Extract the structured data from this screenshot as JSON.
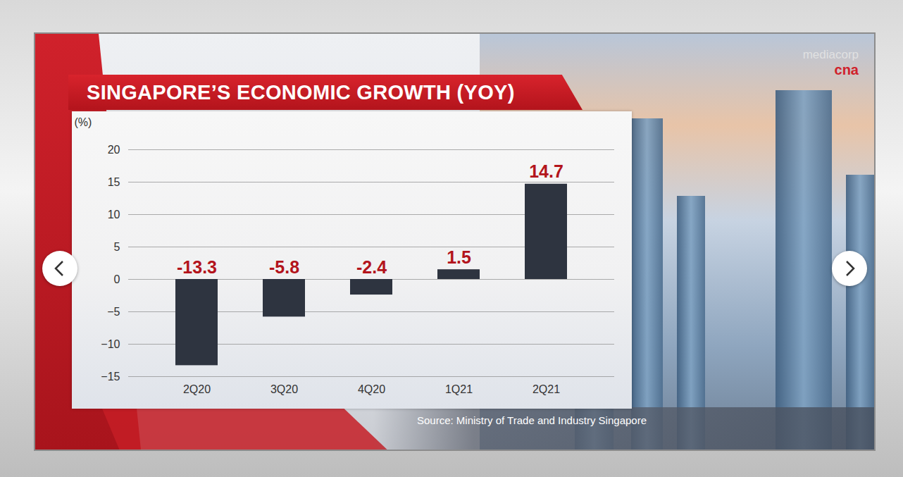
{
  "chart_data": {
    "type": "bar",
    "title": "SINGAPORE’S ECONOMIC GROWTH (YOY)",
    "y_label": "(%)",
    "categories": [
      "2Q20",
      "3Q20",
      "4Q20",
      "1Q21",
      "2Q21"
    ],
    "values": [
      -13.3,
      -5.8,
      -2.4,
      1.5,
      14.7
    ],
    "color": "#2e3440",
    "ylim": [
      -15,
      20
    ],
    "yticks": [
      -15,
      -10,
      -5,
      0,
      5,
      10,
      15,
      20
    ],
    "grid": true,
    "data_labels": true,
    "source": "Source: Ministry of Trade and Industry Singapore",
    "brand": [
      "mediacorp",
      "cna"
    ]
  }
}
